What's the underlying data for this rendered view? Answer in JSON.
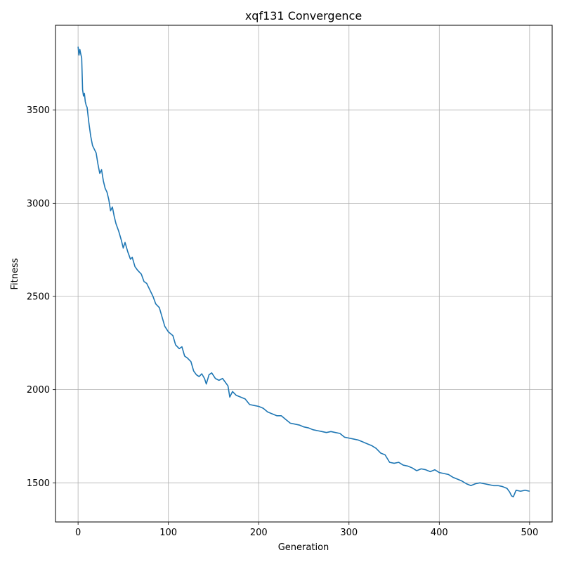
{
  "chart_data": {
    "type": "line",
    "title": "xqf131 Convergence",
    "xlabel": "Generation",
    "ylabel": "Fitness",
    "xlim": [
      -25,
      525
    ],
    "ylim": [
      1290,
      3955
    ],
    "xticks": [
      0,
      100,
      200,
      300,
      400,
      500
    ],
    "yticks": [
      1500,
      2000,
      2500,
      3000,
      3500
    ],
    "grid": true,
    "series": [
      {
        "color": "#1f77b4",
        "points": [
          [
            0,
            3840
          ],
          [
            1,
            3795
          ],
          [
            2,
            3825
          ],
          [
            3,
            3800
          ],
          [
            4,
            3780
          ],
          [
            5,
            3610
          ],
          [
            6,
            3575
          ],
          [
            7,
            3590
          ],
          [
            8,
            3545
          ],
          [
            9,
            3525
          ],
          [
            10,
            3515
          ],
          [
            12,
            3430
          ],
          [
            14,
            3360
          ],
          [
            16,
            3310
          ],
          [
            18,
            3290
          ],
          [
            20,
            3270
          ],
          [
            22,
            3210
          ],
          [
            24,
            3160
          ],
          [
            26,
            3180
          ],
          [
            28,
            3120
          ],
          [
            30,
            3080
          ],
          [
            32,
            3060
          ],
          [
            34,
            3020
          ],
          [
            36,
            2960
          ],
          [
            38,
            2980
          ],
          [
            40,
            2930
          ],
          [
            42,
            2890
          ],
          [
            45,
            2850
          ],
          [
            48,
            2800
          ],
          [
            50,
            2760
          ],
          [
            52,
            2790
          ],
          [
            55,
            2740
          ],
          [
            58,
            2700
          ],
          [
            60,
            2710
          ],
          [
            63,
            2660
          ],
          [
            66,
            2640
          ],
          [
            70,
            2620
          ],
          [
            73,
            2580
          ],
          [
            76,
            2570
          ],
          [
            80,
            2530
          ],
          [
            83,
            2500
          ],
          [
            86,
            2460
          ],
          [
            90,
            2440
          ],
          [
            93,
            2390
          ],
          [
            96,
            2340
          ],
          [
            100,
            2310
          ],
          [
            105,
            2290
          ],
          [
            108,
            2240
          ],
          [
            112,
            2220
          ],
          [
            115,
            2230
          ],
          [
            118,
            2180
          ],
          [
            121,
            2170
          ],
          [
            125,
            2150
          ],
          [
            128,
            2100
          ],
          [
            131,
            2080
          ],
          [
            134,
            2070
          ],
          [
            137,
            2085
          ],
          [
            140,
            2060
          ],
          [
            142,
            2030
          ],
          [
            145,
            2080
          ],
          [
            148,
            2090
          ],
          [
            152,
            2060
          ],
          [
            156,
            2050
          ],
          [
            160,
            2060
          ],
          [
            163,
            2040
          ],
          [
            166,
            2020
          ],
          [
            168,
            1960
          ],
          [
            171,
            1990
          ],
          [
            175,
            1970
          ],
          [
            180,
            1960
          ],
          [
            185,
            1950
          ],
          [
            190,
            1920
          ],
          [
            195,
            1915
          ],
          [
            200,
            1910
          ],
          [
            205,
            1900
          ],
          [
            210,
            1880
          ],
          [
            215,
            1870
          ],
          [
            220,
            1860
          ],
          [
            225,
            1860
          ],
          [
            230,
            1840
          ],
          [
            235,
            1820
          ],
          [
            240,
            1815
          ],
          [
            245,
            1810
          ],
          [
            250,
            1800
          ],
          [
            255,
            1795
          ],
          [
            260,
            1785
          ],
          [
            265,
            1780
          ],
          [
            270,
            1775
          ],
          [
            275,
            1770
          ],
          [
            280,
            1775
          ],
          [
            285,
            1770
          ],
          [
            290,
            1765
          ],
          [
            295,
            1745
          ],
          [
            300,
            1740
          ],
          [
            305,
            1735
          ],
          [
            310,
            1730
          ],
          [
            315,
            1720
          ],
          [
            320,
            1710
          ],
          [
            325,
            1700
          ],
          [
            330,
            1685
          ],
          [
            335,
            1660
          ],
          [
            340,
            1650
          ],
          [
            345,
            1610
          ],
          [
            350,
            1605
          ],
          [
            355,
            1610
          ],
          [
            360,
            1595
          ],
          [
            365,
            1590
          ],
          [
            370,
            1580
          ],
          [
            375,
            1565
          ],
          [
            380,
            1575
          ],
          [
            385,
            1570
          ],
          [
            390,
            1560
          ],
          [
            395,
            1570
          ],
          [
            400,
            1555
          ],
          [
            405,
            1550
          ],
          [
            410,
            1545
          ],
          [
            415,
            1530
          ],
          [
            420,
            1520
          ],
          [
            425,
            1510
          ],
          [
            430,
            1495
          ],
          [
            435,
            1485
          ],
          [
            440,
            1495
          ],
          [
            445,
            1500
          ],
          [
            450,
            1495
          ],
          [
            455,
            1490
          ],
          [
            460,
            1485
          ],
          [
            465,
            1485
          ],
          [
            470,
            1480
          ],
          [
            475,
            1470
          ],
          [
            478,
            1450
          ],
          [
            480,
            1430
          ],
          [
            482,
            1425
          ],
          [
            485,
            1460
          ],
          [
            490,
            1455
          ],
          [
            495,
            1460
          ],
          [
            500,
            1455
          ]
        ]
      }
    ]
  }
}
